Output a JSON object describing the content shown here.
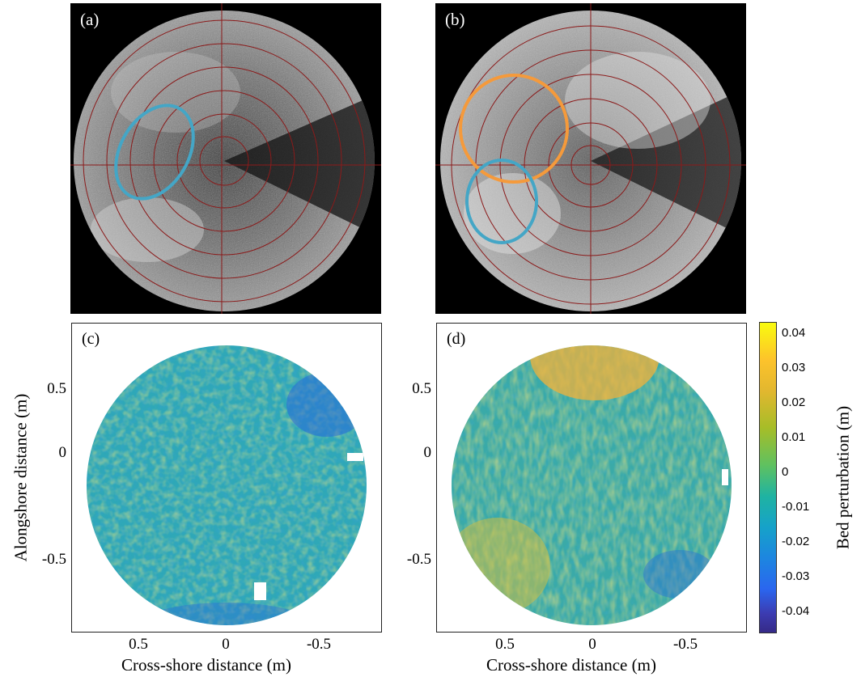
{
  "figure": {
    "panels": [
      {
        "id": "a",
        "label": "(a)"
      },
      {
        "id": "b",
        "label": "(b)"
      },
      {
        "id": "c",
        "label": "(c)"
      },
      {
        "id": "d",
        "label": "(d)"
      }
    ],
    "x_axis_label": "Cross-shore distance (m)",
    "y_axis_label": "Alongshore distance (m)",
    "x_ticks": [
      "0.5",
      "0",
      "-0.5"
    ],
    "y_ticks": [
      "0.5",
      "0",
      "-0.5"
    ],
    "colorbar": {
      "label": "Bed perturbation (m)",
      "ticks": [
        "0.04",
        "0.03",
        "0.02",
        "0.01",
        "0",
        "-0.01",
        "-0.02",
        "-0.03",
        "-0.04"
      ],
      "colormap": "parula"
    },
    "annotation_colors": {
      "blue_ellipse": "#44a6c6",
      "orange_ellipse": "#f59a3b",
      "range_rings": "#8b1a1a"
    }
  },
  "chart_data": [
    {
      "type": "heatmap",
      "panel": "(c)",
      "xlabel": "Cross-shore distance (m)",
      "ylabel": "Alongshore distance (m)",
      "xlim": [
        0.85,
        -0.85
      ],
      "ylim": [
        -0.85,
        0.85
      ],
      "x_ticks": [
        0.5,
        0,
        -0.5
      ],
      "y_ticks": [
        0.5,
        0,
        -0.5
      ],
      "clim": [
        -0.04,
        0.04
      ]
    },
    {
      "type": "heatmap",
      "panel": "(d)",
      "xlabel": "Cross-shore distance (m)",
      "xlim": [
        0.85,
        -0.85
      ],
      "ylim": [
        -0.85,
        0.85
      ],
      "x_ticks": [
        0.5,
        0,
        -0.5
      ],
      "y_ticks": [
        0.5,
        0,
        -0.5
      ],
      "clim": [
        -0.04,
        0.04
      ]
    }
  ]
}
